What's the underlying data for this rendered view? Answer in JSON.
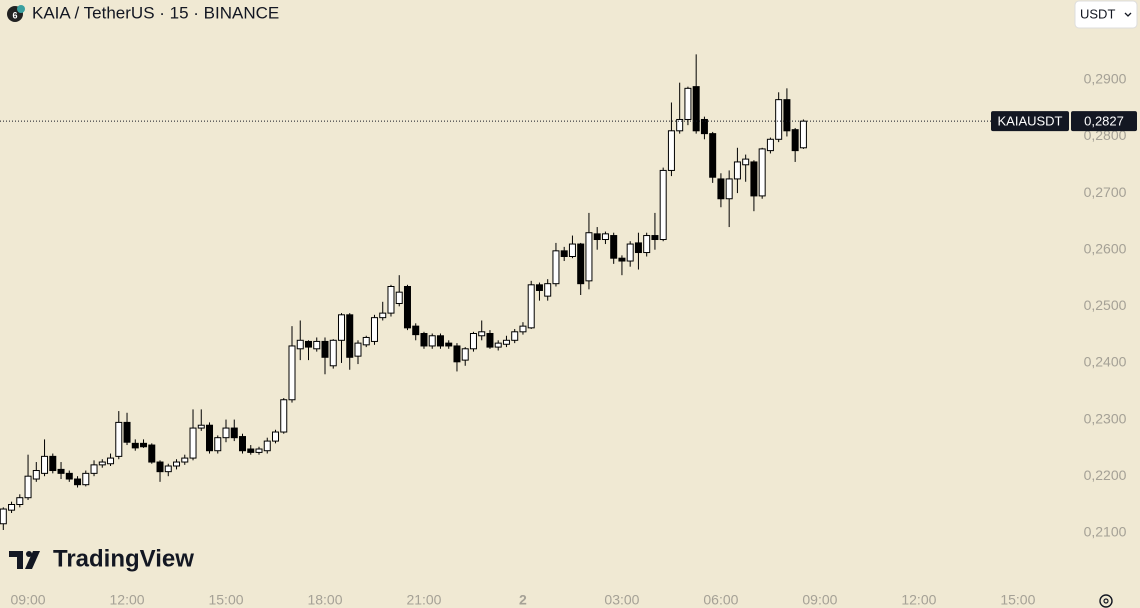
{
  "chart_data": {
    "type": "candlestick",
    "title": "KAIA / TetherUS · 15 · BINANCE",
    "currency_button": "USDT",
    "brand": "TradingView",
    "up_color": "#ffffff",
    "down_color": "#000000",
    "symbol_label": "KAIAUSDT",
    "last_price": {
      "value": 0.2827,
      "label": "0,2827"
    },
    "xlim": [
      8.15,
      40.58
    ],
    "ylim": [
      0.1999,
      0.3041
    ],
    "xticks": [
      {
        "value": 9,
        "label": "09:00"
      },
      {
        "value": 12,
        "label": "12:00"
      },
      {
        "value": 15,
        "label": "15:00"
      },
      {
        "value": 18,
        "label": "18:00"
      },
      {
        "value": 21,
        "label": "21:00"
      },
      {
        "value": 24,
        "label": "2"
      },
      {
        "value": 27,
        "label": "03:00"
      },
      {
        "value": 30,
        "label": "06:00"
      },
      {
        "value": 33,
        "label": "09:00"
      },
      {
        "value": 36,
        "label": "12:00"
      },
      {
        "value": 39,
        "label": "15:00"
      }
    ],
    "yticks": [
      {
        "value": 0.21,
        "label": "0,2100"
      },
      {
        "value": 0.22,
        "label": "0,2200"
      },
      {
        "value": 0.23,
        "label": "0,2300"
      },
      {
        "value": 0.24,
        "label": "0,2400"
      },
      {
        "value": 0.25,
        "label": "0,2500"
      },
      {
        "value": 0.26,
        "label": "0,2600"
      },
      {
        "value": 0.27,
        "label": "0,2700"
      },
      {
        "value": 0.28,
        "label": "0,2800"
      },
      {
        "value": 0.29,
        "label": "0,2900"
      }
    ],
    "x": [
      8.25,
      8.5,
      8.75,
      9,
      9.25,
      9.5,
      9.75,
      10,
      10.25,
      10.5,
      10.75,
      11,
      11.25,
      11.5,
      11.75,
      12,
      12.25,
      12.5,
      12.75,
      13,
      13.25,
      13.5,
      13.75,
      14,
      14.25,
      14.5,
      14.75,
      15,
      15.25,
      15.5,
      15.75,
      16,
      16.25,
      16.5,
      16.75,
      17,
      17.25,
      17.5,
      17.75,
      18,
      18.25,
      18.5,
      18.75,
      19,
      19.25,
      19.5,
      19.75,
      20,
      20.25,
      20.5,
      20.75,
      21,
      21.25,
      21.5,
      21.75,
      22,
      22.25,
      22.5,
      22.75,
      23,
      23.25,
      23.5,
      23.75,
      24,
      24.25,
      24.5,
      24.75,
      25,
      25.25,
      25.5,
      25.75,
      26,
      26.25,
      26.5,
      26.75,
      27,
      27.25,
      27.5,
      27.75,
      28,
      28.25,
      28.5,
      28.75,
      29,
      29.25,
      29.5,
      29.75,
      30,
      30.25,
      30.5,
      30.75,
      31,
      31.25,
      31.5,
      31.75,
      32,
      32.25,
      32.5
    ],
    "open": [
      0.2116,
      0.214,
      0.215,
      0.2162,
      0.2195,
      0.2205,
      0.2235,
      0.2212,
      0.2205,
      0.2195,
      0.2185,
      0.2205,
      0.222,
      0.2222,
      0.2235,
      0.2295,
      0.2258,
      0.2258,
      0.2255,
      0.2225,
      0.2208,
      0.2218,
      0.2225,
      0.2232,
      0.2285,
      0.229,
      0.2245,
      0.2268,
      0.2285,
      0.227,
      0.2248,
      0.2242,
      0.2245,
      0.2262,
      0.2278,
      0.2335,
      0.2425,
      0.2438,
      0.2425,
      0.2438,
      0.2395,
      0.244,
      0.2485,
      0.2412,
      0.2432,
      0.2438,
      0.248,
      0.2488,
      0.2505,
      0.2535,
      0.2465,
      0.2452,
      0.243,
      0.2448,
      0.2435,
      0.243,
      0.2405,
      0.2425,
      0.2448,
      0.2452,
      0.2428,
      0.2433,
      0.244,
      0.2455,
      0.2462,
      0.2538,
      0.2518,
      0.254,
      0.2598,
      0.2588,
      0.261,
      0.2545,
      0.2628,
      0.2618,
      0.2625,
      0.2585,
      0.258,
      0.2612,
      0.2595,
      0.2625,
      0.2618,
      0.274,
      0.281,
      0.283,
      0.2888,
      0.283,
      0.2805,
      0.2725,
      0.269,
      0.2725,
      0.275,
      0.2755,
      0.2695,
      0.2775,
      0.2795,
      0.2865,
      0.2812,
      0.278
    ],
    "high": [
      0.2145,
      0.2155,
      0.2168,
      0.2238,
      0.2225,
      0.2265,
      0.224,
      0.2225,
      0.221,
      0.22,
      0.221,
      0.2228,
      0.223,
      0.224,
      0.2315,
      0.2312,
      0.2265,
      0.2265,
      0.2258,
      0.2228,
      0.2222,
      0.223,
      0.2238,
      0.2318,
      0.2318,
      0.2295,
      0.2272,
      0.23,
      0.23,
      0.2275,
      0.2255,
      0.2252,
      0.2268,
      0.2282,
      0.2338,
      0.2465,
      0.2475,
      0.244,
      0.2445,
      0.2445,
      0.2442,
      0.2488,
      0.2488,
      0.244,
      0.2448,
      0.2485,
      0.2508,
      0.2538,
      0.2555,
      0.2538,
      0.247,
      0.2455,
      0.2452,
      0.2452,
      0.244,
      0.2435,
      0.2428,
      0.2455,
      0.2475,
      0.2458,
      0.244,
      0.2448,
      0.246,
      0.2472,
      0.2545,
      0.2542,
      0.2548,
      0.2612,
      0.2605,
      0.2625,
      0.2612,
      0.2665,
      0.264,
      0.2632,
      0.263,
      0.259,
      0.2615,
      0.263,
      0.263,
      0.2665,
      0.2745,
      0.286,
      0.2895,
      0.2888,
      0.2945,
      0.2835,
      0.2808,
      0.2735,
      0.274,
      0.278,
      0.2768,
      0.2758,
      0.278,
      0.2798,
      0.2878,
      0.2885,
      0.2815,
      0.283
    ],
    "low": [
      0.2105,
      0.2135,
      0.2145,
      0.2158,
      0.219,
      0.22,
      0.2205,
      0.2195,
      0.219,
      0.218,
      0.2182,
      0.22,
      0.2215,
      0.2218,
      0.223,
      0.2255,
      0.2245,
      0.225,
      0.2222,
      0.219,
      0.22,
      0.2212,
      0.222,
      0.2228,
      0.228,
      0.224,
      0.224,
      0.226,
      0.2262,
      0.224,
      0.2238,
      0.2238,
      0.224,
      0.2258,
      0.2275,
      0.233,
      0.2405,
      0.2405,
      0.242,
      0.238,
      0.239,
      0.24,
      0.2388,
      0.2398,
      0.2428,
      0.2432,
      0.2475,
      0.2482,
      0.25,
      0.2458,
      0.244,
      0.2425,
      0.2425,
      0.2425,
      0.2425,
      0.2385,
      0.2395,
      0.242,
      0.244,
      0.2425,
      0.2422,
      0.2428,
      0.2435,
      0.245,
      0.246,
      0.251,
      0.251,
      0.2535,
      0.258,
      0.2585,
      0.252,
      0.253,
      0.26,
      0.261,
      0.2575,
      0.2555,
      0.257,
      0.2565,
      0.2588,
      0.26,
      0.2615,
      0.273,
      0.2805,
      0.282,
      0.2805,
      0.2795,
      0.2718,
      0.2675,
      0.264,
      0.27,
      0.272,
      0.2668,
      0.269,
      0.277,
      0.279,
      0.28,
      0.2755,
      0.2778
    ],
    "close": [
      0.2142,
      0.215,
      0.2162,
      0.22,
      0.221,
      0.2235,
      0.221,
      0.2205,
      0.2195,
      0.2185,
      0.2205,
      0.222,
      0.2225,
      0.2232,
      0.2295,
      0.226,
      0.225,
      0.2252,
      0.2225,
      0.2208,
      0.2218,
      0.2225,
      0.2232,
      0.2285,
      0.229,
      0.2245,
      0.2268,
      0.2285,
      0.2268,
      0.2245,
      0.2242,
      0.2248,
      0.2262,
      0.2278,
      0.2335,
      0.243,
      0.244,
      0.2428,
      0.2438,
      0.241,
      0.244,
      0.2485,
      0.241,
      0.2435,
      0.2445,
      0.248,
      0.2488,
      0.2535,
      0.2525,
      0.2462,
      0.245,
      0.243,
      0.2448,
      0.243,
      0.243,
      0.2402,
      0.2425,
      0.2452,
      0.2455,
      0.2428,
      0.2435,
      0.244,
      0.2455,
      0.2465,
      0.2538,
      0.2528,
      0.254,
      0.2598,
      0.2588,
      0.261,
      0.254,
      0.263,
      0.2618,
      0.2628,
      0.2585,
      0.258,
      0.261,
      0.2595,
      0.2625,
      0.2618,
      0.274,
      0.281,
      0.283,
      0.2885,
      0.281,
      0.2805,
      0.2728,
      0.269,
      0.2725,
      0.2755,
      0.276,
      0.2695,
      0.2778,
      0.2795,
      0.2865,
      0.281,
      0.2775,
      0.2827
    ]
  }
}
